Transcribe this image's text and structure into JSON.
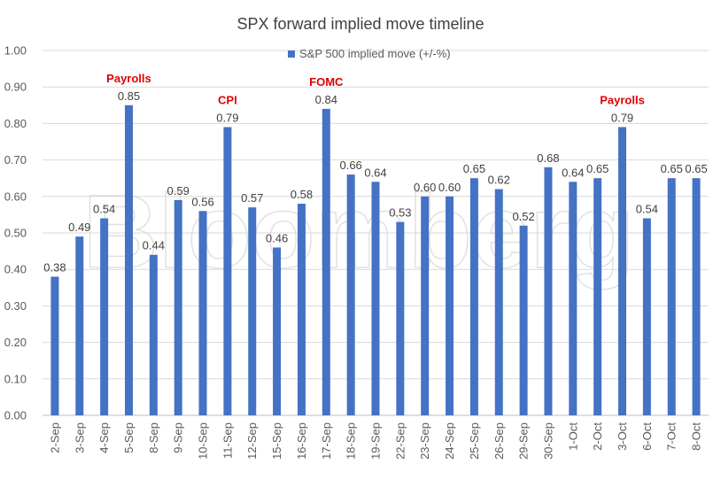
{
  "chart_data": {
    "type": "bar",
    "title": "SPX forward implied move timeline",
    "legend": {
      "label": "S&P 500 implied move (+/-%)",
      "position": "top"
    },
    "categories": [
      "2-Sep",
      "3-Sep",
      "4-Sep",
      "5-Sep",
      "8-Sep",
      "9-Sep",
      "10-Sep",
      "11-Sep",
      "12-Sep",
      "15-Sep",
      "16-Sep",
      "17-Sep",
      "18-Sep",
      "19-Sep",
      "22-Sep",
      "23-Sep",
      "24-Sep",
      "25-Sep",
      "26-Sep",
      "29-Sep",
      "30-Sep",
      "1-Oct",
      "2-Oct",
      "3-Oct",
      "6-Oct",
      "7-Oct",
      "8-Oct"
    ],
    "series": [
      {
        "name": "S&P 500 implied move (+/-%)",
        "values": [
          0.38,
          0.49,
          0.54,
          0.85,
          0.44,
          0.59,
          0.56,
          0.79,
          0.57,
          0.46,
          0.58,
          0.84,
          0.66,
          0.64,
          0.53,
          0.6,
          0.6,
          0.65,
          0.62,
          0.52,
          0.68,
          0.64,
          0.65,
          0.79,
          0.54,
          0.65,
          0.65
        ],
        "labels": [
          "0.38",
          "0.49",
          "0.54",
          "0.85",
          "0.44",
          "0.59",
          "0.56",
          "0.79",
          "0.57",
          "0.46",
          "0.58",
          "0.84",
          "0.66",
          "0.64",
          "0.53",
          "0.60",
          "0.60",
          "0.65",
          "0.62",
          "0.52",
          "0.68",
          "0.64",
          "0.65",
          "0.79",
          "0.54",
          "0.65",
          "0.65"
        ],
        "color": "#4472c4"
      }
    ],
    "yticks": [
      "0.00",
      "0.10",
      "0.20",
      "0.30",
      "0.40",
      "0.50",
      "0.60",
      "0.70",
      "0.80",
      "0.90",
      "1.00"
    ],
    "ylim": [
      0,
      1
    ],
    "grid": true,
    "annotations": [
      {
        "category": "5-Sep",
        "text": "Payrolls"
      },
      {
        "category": "11-Sep",
        "text": "CPI"
      },
      {
        "category": "17-Sep",
        "text": "FOMC"
      },
      {
        "category": "3-Oct",
        "text": "Payrolls"
      }
    ],
    "annotation_color": "#e00000",
    "watermark": "Bloomberg"
  }
}
